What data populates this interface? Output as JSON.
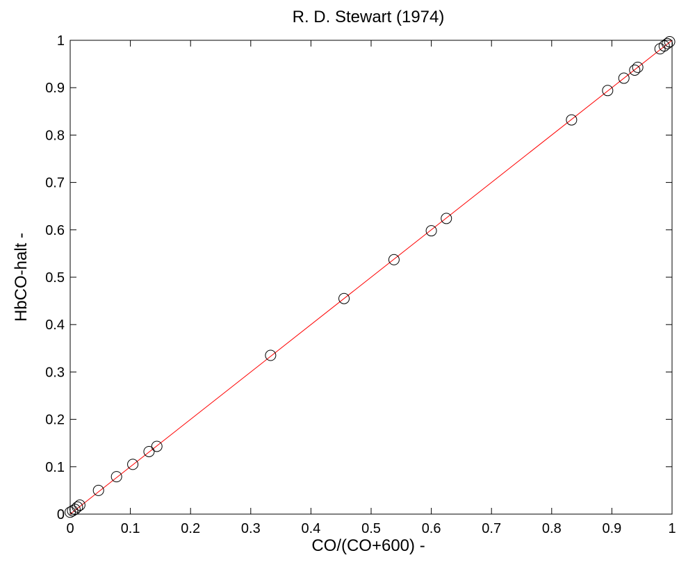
{
  "chart_data": {
    "type": "scatter",
    "title": "R. D. Stewart (1974)",
    "xlabel": "CO/(CO+600) -",
    "ylabel": "HbCO-halt -",
    "xlim": [
      0,
      1
    ],
    "ylim": [
      0,
      1
    ],
    "xticks": [
      "0",
      "0.1",
      "0.2",
      "0.3",
      "0.4",
      "0.5",
      "0.6",
      "0.7",
      "0.8",
      "0.9",
      "1"
    ],
    "yticks": [
      "0",
      "0.1",
      "0.2",
      "0.3",
      "0.4",
      "0.5",
      "0.6",
      "0.7",
      "0.8",
      "0.9",
      "1"
    ],
    "grid": false,
    "series": [
      {
        "marker": "open-circle",
        "color": "#000000",
        "points": [
          [
            0.0,
            0.004
          ],
          [
            0.004,
            0.007
          ],
          [
            0.008,
            0.01
          ],
          [
            0.012,
            0.015
          ],
          [
            0.016,
            0.019
          ],
          [
            0.047,
            0.05
          ],
          [
            0.077,
            0.079
          ],
          [
            0.104,
            0.105
          ],
          [
            0.131,
            0.132
          ],
          [
            0.144,
            0.143
          ],
          [
            0.333,
            0.335
          ],
          [
            0.455,
            0.455
          ],
          [
            0.538,
            0.537
          ],
          [
            0.6,
            0.598
          ],
          [
            0.625,
            0.624
          ],
          [
            0.833,
            0.832
          ],
          [
            0.893,
            0.894
          ],
          [
            0.92,
            0.92
          ],
          [
            0.938,
            0.937
          ],
          [
            0.943,
            0.943
          ],
          [
            0.98,
            0.982
          ],
          [
            0.987,
            0.988
          ],
          [
            0.992,
            0.993
          ],
          [
            0.996,
            0.997
          ]
        ]
      },
      {
        "type": "line",
        "color": "#ff0000",
        "points": [
          [
            0,
            0
          ],
          [
            1,
            1
          ]
        ]
      }
    ]
  }
}
